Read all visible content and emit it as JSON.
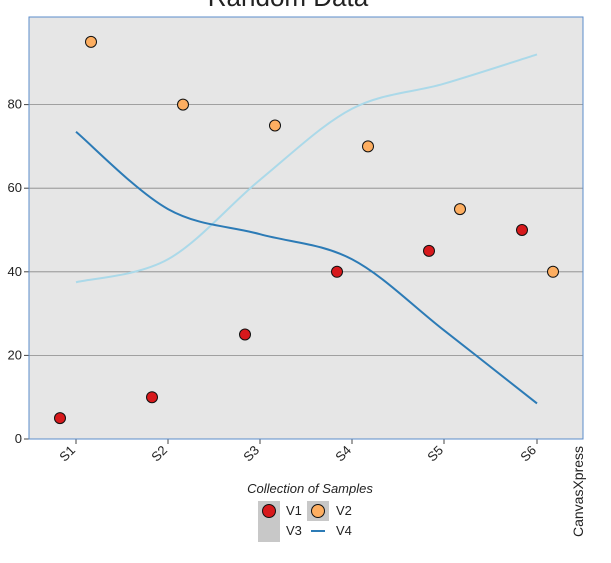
{
  "chart_data": {
    "type": "scatter",
    "title": "Random Data",
    "xlabel": "Collection of Samples",
    "ylabel": "",
    "categories": [
      "S1",
      "S2",
      "S3",
      "S4",
      "S5",
      "S6"
    ],
    "ylim": [
      0,
      100
    ],
    "yticks": [
      0,
      20,
      40,
      60,
      80
    ],
    "grid": true,
    "legend_position": "bottom",
    "series": [
      {
        "name": "V1",
        "kind": "points",
        "color": "#d7191c",
        "values": [
          5,
          10,
          25,
          40,
          45,
          50
        ]
      },
      {
        "name": "V2",
        "kind": "points",
        "color": "#fdae61",
        "values": [
          95,
          80,
          75,
          70,
          55,
          40
        ]
      },
      {
        "name": "V3",
        "kind": "line",
        "color": "#abd9e9",
        "values": [
          37.5,
          43,
          62,
          79,
          85,
          92
        ]
      },
      {
        "name": "V4",
        "kind": "line",
        "color": "#2c7bb6",
        "values": [
          73.5,
          55,
          49,
          43,
          26,
          8.5
        ]
      }
    ],
    "colors": {
      "plot_bg": "#e6e6e6",
      "grid": "#888888",
      "frame": "#5b8ccb",
      "legend_bg": "#c8c8c8"
    },
    "watermark": "CanvasXpress"
  }
}
